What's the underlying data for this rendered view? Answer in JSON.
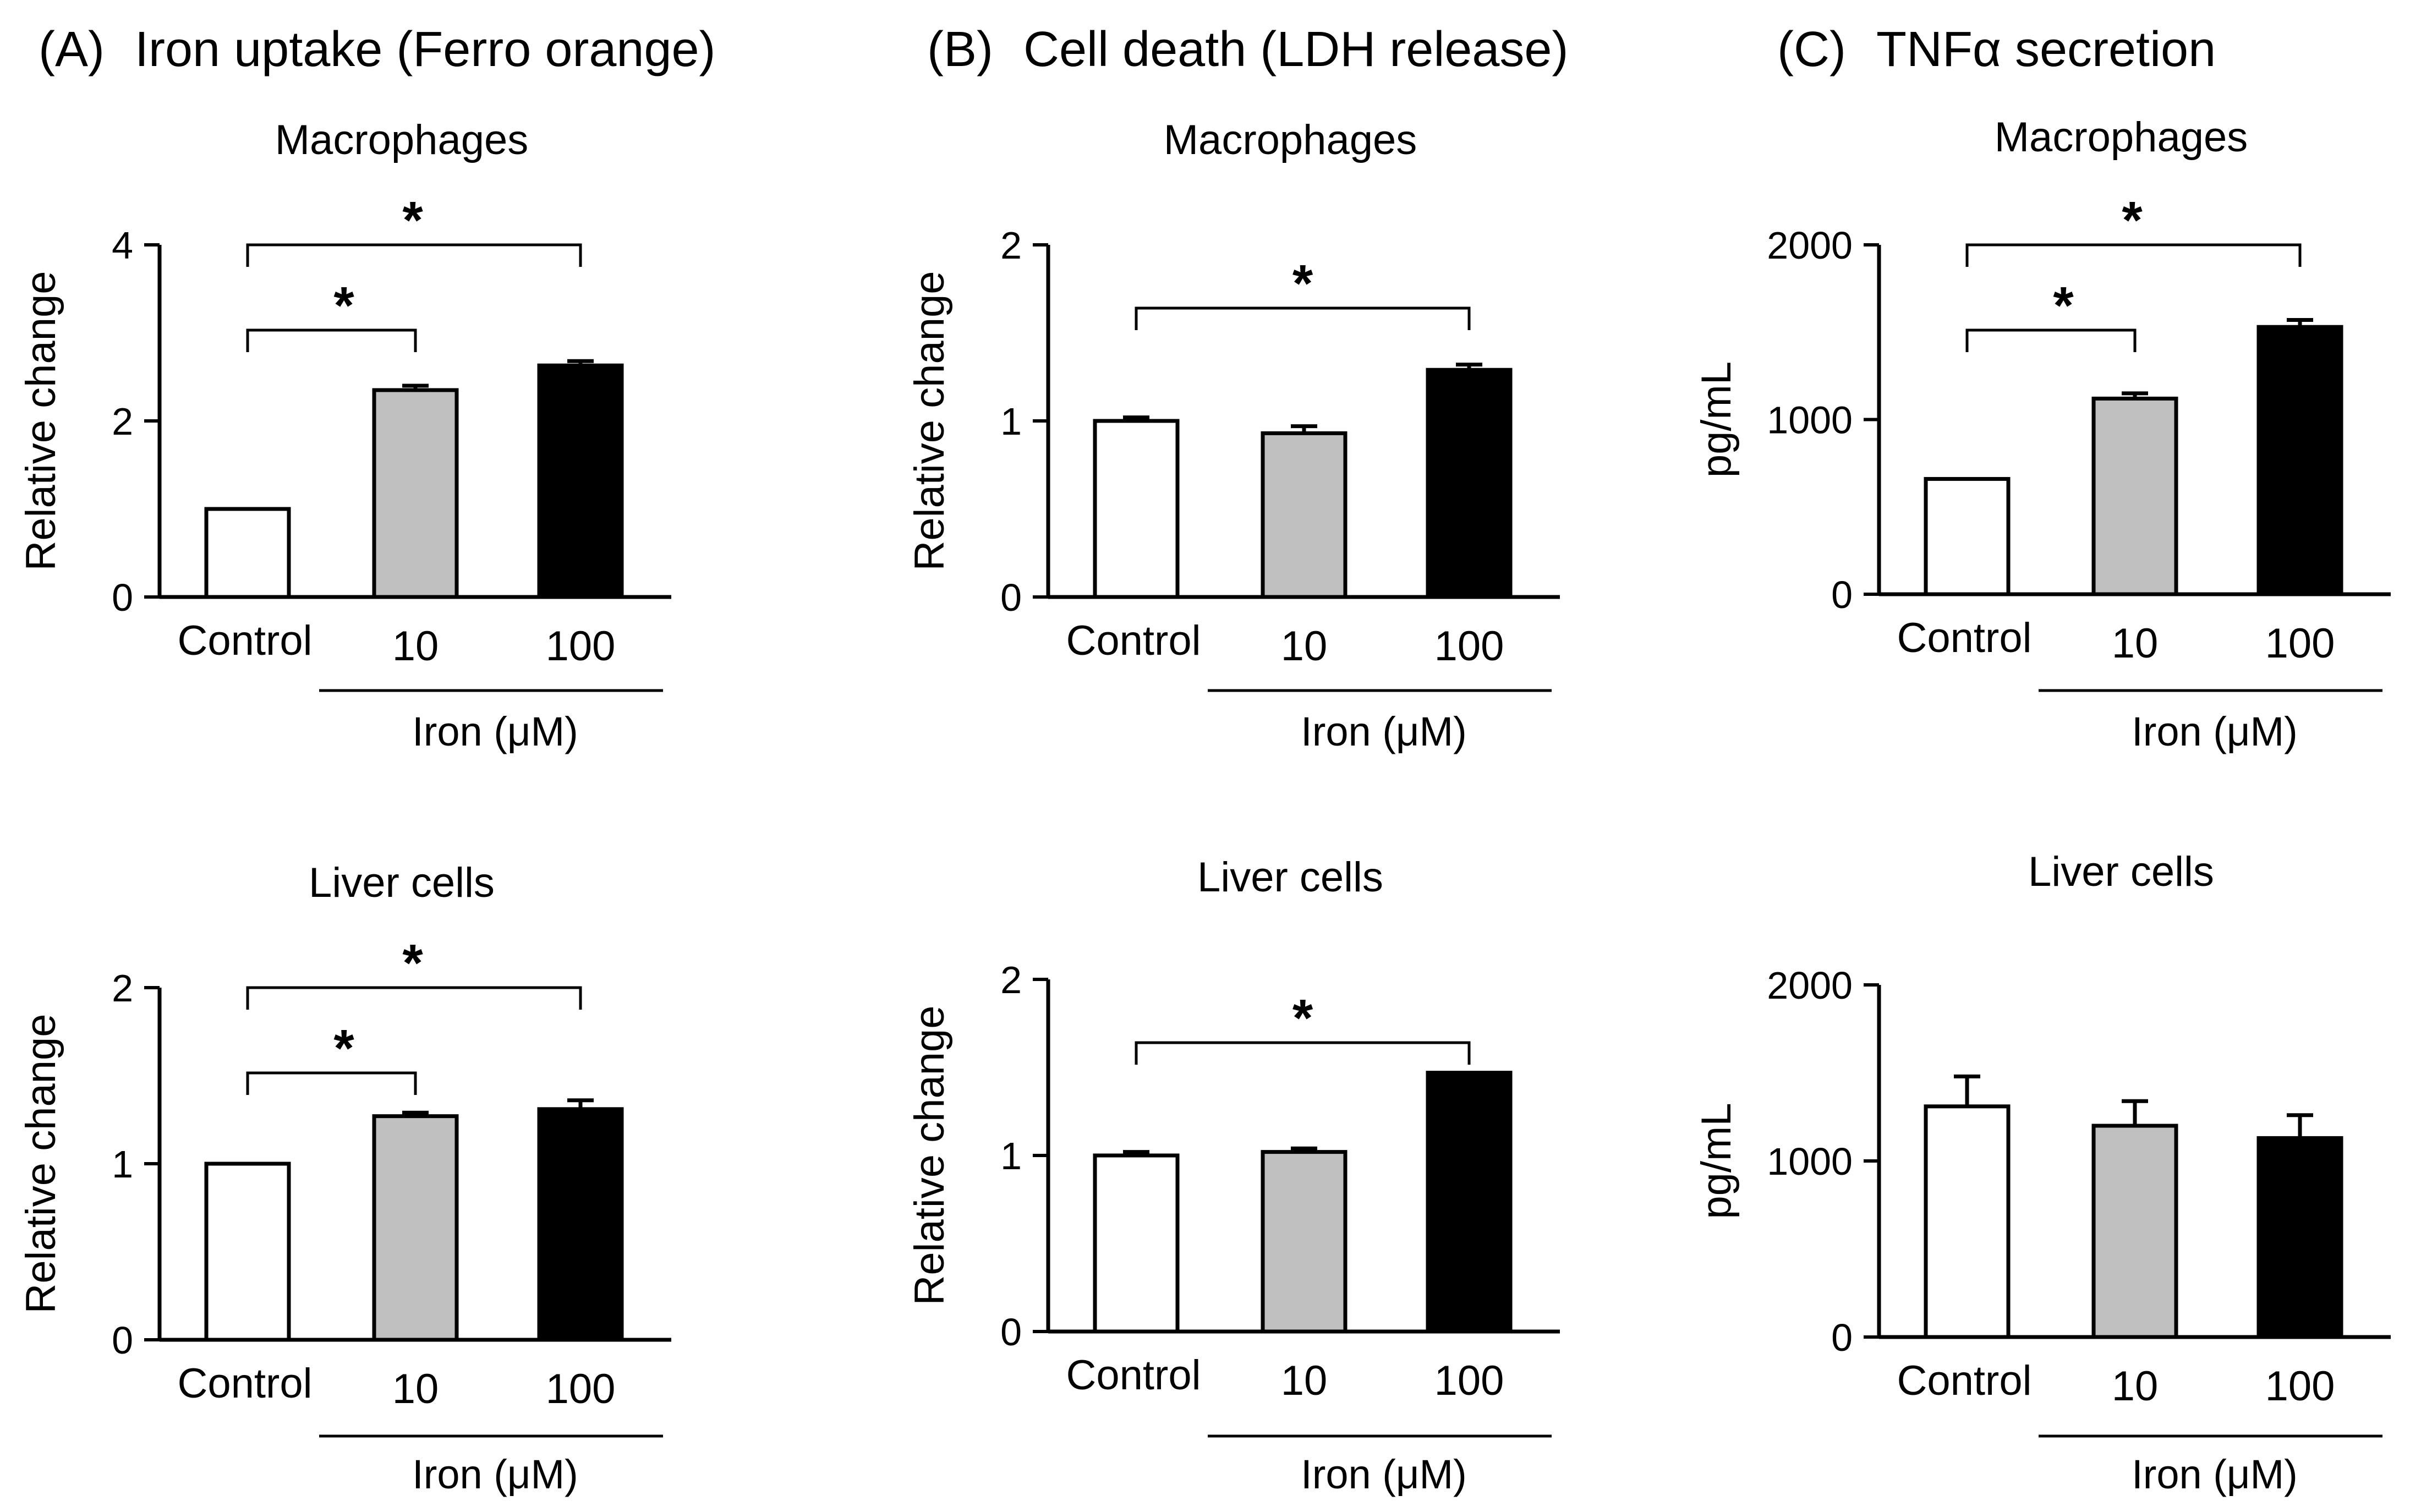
{
  "sections": [
    {
      "label": "(A)",
      "title": "Iron uptake (Ferro orange)"
    },
    {
      "label": "(B)",
      "title": "Cell death (LDH release)"
    },
    {
      "label": "(C)",
      "title": "TNFα secretion"
    }
  ],
  "colors": {
    "control": "#ffffff",
    "iron10": "#c0c0c0",
    "iron100": "#000000",
    "axis": "#000000"
  },
  "chart_data": [
    {
      "id": "A-top",
      "type": "bar",
      "title": "Macrophages",
      "ylabel": "Relative change",
      "categories": [
        "Control",
        "10",
        "100"
      ],
      "group_label": "Iron (μM)",
      "values": [
        1.0,
        2.35,
        2.63
      ],
      "errors": [
        0.0,
        0.05,
        0.05
      ],
      "ylim": [
        0,
        4
      ],
      "yticks": [
        0,
        2,
        4
      ],
      "significance": [
        {
          "from": 0,
          "to": 1,
          "label": "*"
        },
        {
          "from": 0,
          "to": 2,
          "label": "*"
        }
      ]
    },
    {
      "id": "A-bottom",
      "type": "bar",
      "title": "Liver cells",
      "ylabel": "Relative change",
      "categories": [
        "Control",
        "10",
        "100"
      ],
      "group_label": "Iron (μM)",
      "values": [
        1.0,
        1.27,
        1.31
      ],
      "errors": [
        0.0,
        0.02,
        0.05
      ],
      "ylim": [
        0,
        2
      ],
      "yticks": [
        0,
        1,
        2
      ],
      "significance": [
        {
          "from": 0,
          "to": 1,
          "label": "*"
        },
        {
          "from": 0,
          "to": 2,
          "label": "*"
        }
      ]
    },
    {
      "id": "B-top",
      "type": "bar",
      "title": "Macrophages",
      "ylabel": "Relative change",
      "categories": [
        "Control",
        "10",
        "100"
      ],
      "group_label": "Iron (μM)",
      "values": [
        1.0,
        0.93,
        1.29
      ],
      "errors": [
        0.02,
        0.04,
        0.03
      ],
      "ylim": [
        0,
        2
      ],
      "yticks": [
        0,
        1,
        2
      ],
      "significance": [
        {
          "from": 0,
          "to": 2,
          "label": "*"
        }
      ]
    },
    {
      "id": "B-bottom",
      "type": "bar",
      "title": "Liver cells",
      "ylabel": "Relative change",
      "categories": [
        "Control",
        "10",
        "100"
      ],
      "group_label": "Iron (μM)",
      "values": [
        1.0,
        1.02,
        1.47
      ],
      "errors": [
        0.02,
        0.02,
        0.0
      ],
      "ylim": [
        0,
        2
      ],
      "yticks": [
        0,
        1,
        2
      ],
      "significance": [
        {
          "from": 0,
          "to": 2,
          "label": "*"
        }
      ]
    },
    {
      "id": "C-top",
      "type": "bar",
      "title": "Macrophages",
      "ylabel": "pg/mL",
      "categories": [
        "Control",
        "10",
        "100"
      ],
      "group_label": "Iron (μM)",
      "values": [
        660,
        1120,
        1530
      ],
      "errors": [
        0,
        30,
        40
      ],
      "ylim": [
        0,
        2000
      ],
      "yticks": [
        0,
        1000,
        2000
      ],
      "significance": [
        {
          "from": 0,
          "to": 1,
          "label": "*"
        },
        {
          "from": 0,
          "to": 2,
          "label": "*"
        }
      ]
    },
    {
      "id": "C-bottom",
      "type": "bar",
      "title": "Liver cells",
      "ylabel": "pg/mL",
      "categories": [
        "Control",
        "10",
        "100"
      ],
      "group_label": "Iron (μM)",
      "values": [
        1310,
        1200,
        1130
      ],
      "errors": [
        170,
        140,
        130
      ],
      "ylim": [
        0,
        2000
      ],
      "yticks": [
        0,
        1000,
        2000
      ],
      "significance": []
    }
  ]
}
